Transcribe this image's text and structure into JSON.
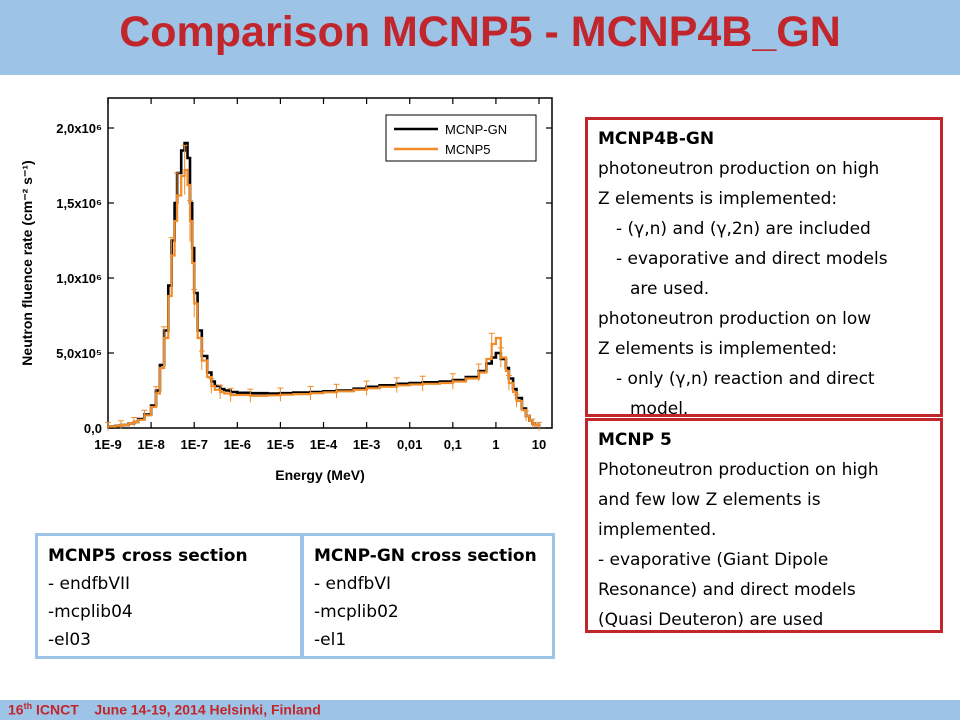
{
  "title": "Comparison MCNP5 - MCNP4B_GN",
  "colors": {
    "title": "#c0262c",
    "bar": "#9dc3e6",
    "panel_border": "#c0262c",
    "mcnp_gn": "#000000",
    "mcnp5": "#f28c28"
  },
  "chart_data": {
    "type": "line",
    "xlabel": "Energy (MeV)",
    "ylabel": "Neutron fluence rate (cm⁻² s⁻¹)",
    "x_scale": "log",
    "xlim": [
      1e-09,
      20
    ],
    "ylim": [
      0,
      2200000.0
    ],
    "x_ticks": [
      "1E-9",
      "1E-8",
      "1E-7",
      "1E-6",
      "1E-5",
      "1E-4",
      "1E-3",
      "0,01",
      "0,1",
      "1",
      "10"
    ],
    "y_ticks": [
      "0,0",
      "5,0x10⁵",
      "1,0x10⁶",
      "1,5x10⁶",
      "2,0x10⁶"
    ],
    "legend_position": "top-right",
    "x": [
      1e-09,
      1.5e-09,
      2e-09,
      3e-09,
      4e-09,
      5e-09,
      7e-09,
      1e-08,
      1.3e-08,
      1.6e-08,
      2e-08,
      2.5e-08,
      3e-08,
      3.5e-08,
      4e-08,
      5e-08,
      6e-08,
      7e-08,
      8e-08,
      9e-08,
      1e-07,
      1.2e-07,
      1.5e-07,
      2e-07,
      2.5e-07,
      3e-07,
      4e-07,
      5e-07,
      7e-07,
      1e-06,
      2e-06,
      5e-06,
      1e-05,
      2e-05,
      5e-05,
      0.0001,
      0.0002,
      0.0005,
      0.001,
      0.002,
      0.005,
      0.01,
      0.02,
      0.05,
      0.1,
      0.2,
      0.4,
      0.6,
      0.8,
      1,
      1.3,
      1.7,
      2,
      2.5,
      3,
      4,
      5,
      6,
      7,
      8,
      10
    ],
    "series": [
      {
        "name": "MCNP-GN",
        "values": [
          10000,
          15000,
          20000,
          30000,
          40000,
          60000,
          90000,
          150000,
          250000,
          420000,
          650000,
          950000,
          1250000,
          1500000,
          1700000,
          1850000,
          1900000,
          1800000,
          1500000,
          1200000,
          900000,
          650000,
          480000,
          370000,
          310000,
          280000,
          260000,
          250000,
          240000,
          235000,
          232000,
          230000,
          232000,
          236000,
          240000,
          245000,
          250000,
          262000,
          275000,
          285000,
          295000,
          300000,
          305000,
          310000,
          320000,
          340000,
          380000,
          430000,
          470000,
          500000,
          460000,
          400000,
          330000,
          260000,
          200000,
          130000,
          80000,
          50000,
          30000,
          20000,
          10000
        ]
      },
      {
        "name": "MCNP5",
        "values": [
          10000,
          15000,
          20000,
          30000,
          40000,
          55000,
          85000,
          140000,
          230000,
          400000,
          600000,
          880000,
          1150000,
          1380000,
          1550000,
          1680000,
          1720000,
          1620000,
          1380000,
          1100000,
          830000,
          600000,
          450000,
          340000,
          280000,
          255000,
          240000,
          230000,
          220000,
          220000,
          215000,
          218000,
          222000,
          226000,
          232000,
          238000,
          245000,
          255000,
          265000,
          275000,
          285000,
          290000,
          295000,
          300000,
          310000,
          330000,
          370000,
          460000,
          560000,
          600000,
          470000,
          380000,
          300000,
          240000,
          180000,
          120000,
          80000,
          50000,
          30000,
          20000,
          10000
        ]
      }
    ]
  },
  "panel_gn": {
    "heading": "MCNP4B-GN",
    "line1": "photoneutron production on high",
    "line2": "Z elements is implemented:",
    "line3": "- (γ,n) and (γ,2n) are included",
    "line4": "- evaporative and direct models",
    "line5": "are used.",
    "line6": "photoneutron production on low",
    "line7": "Z elements is implemented:",
    "line8": "- only (γ,n) reaction and direct",
    "line9": "model."
  },
  "panel_mcnp5": {
    "heading": "MCNP 5",
    "line1": "Photoneutron production on high",
    "line2": "and few  low Z elements is",
    "line3": "implemented.",
    "line4": " - evaporative (Giant Dipole",
    "line5": "Resonance) and direct models",
    "line6": "(Quasi Deuteron) are used"
  },
  "xs_mcnp5": {
    "heading": "MCNP5 cross section",
    "item1": "- endfbVII",
    "item2": "-mcplib04",
    "item3": "-el03"
  },
  "xs_gn": {
    "heading": "MCNP-GN cross section",
    "item1": "- endfbVI",
    "item2": "-mcplib02",
    "item3": "-el1"
  },
  "footer": {
    "edition": "16",
    "edition_suffix": "th",
    "conference": "ICNCT",
    "dates_place": "June 14-19, 2014 Helsinki, Finland"
  }
}
